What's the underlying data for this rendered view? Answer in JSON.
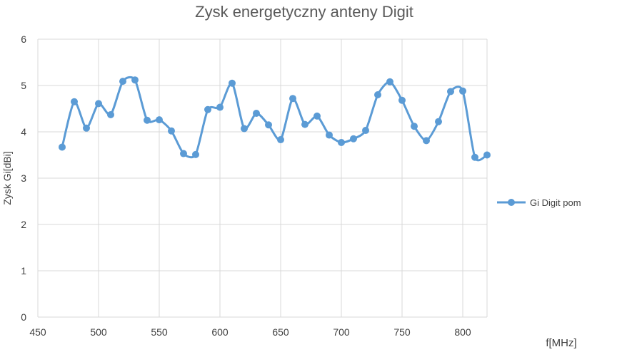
{
  "chart_data": {
    "type": "line",
    "title": "Zysk energetyczny anteny Digit",
    "xlabel": "f[MHz]",
    "ylabel": "Zysk Gi[dBi]",
    "xlim": [
      450,
      820
    ],
    "ylim": [
      0,
      6
    ],
    "x_ticks": [
      "450",
      "500",
      "550",
      "600",
      "650",
      "700",
      "750",
      "800"
    ],
    "y_ticks": [
      "0",
      "1",
      "2",
      "3",
      "4",
      "5",
      "6"
    ],
    "grid": true,
    "legend_position": "right",
    "series": [
      {
        "name": "Gi Digit pom",
        "color": "#5b9bd5",
        "x": [
          470,
          480,
          490,
          500,
          510,
          520,
          530,
          540,
          550,
          560,
          570,
          580,
          590,
          600,
          610,
          620,
          630,
          640,
          650,
          660,
          670,
          680,
          690,
          700,
          710,
          720,
          730,
          740,
          750,
          760,
          770,
          780,
          790,
          800,
          810,
          820
        ],
        "y": [
          3.67,
          4.65,
          4.08,
          4.61,
          4.37,
          5.09,
          5.12,
          4.25,
          4.26,
          4.02,
          3.53,
          3.51,
          4.48,
          4.53,
          5.05,
          4.07,
          4.4,
          4.15,
          3.83,
          4.72,
          4.16,
          4.34,
          3.93,
          3.77,
          3.85,
          4.03,
          4.8,
          5.08,
          4.68,
          4.12,
          3.81,
          4.22,
          4.87,
          4.88,
          3.45,
          3.5
        ]
      }
    ]
  }
}
